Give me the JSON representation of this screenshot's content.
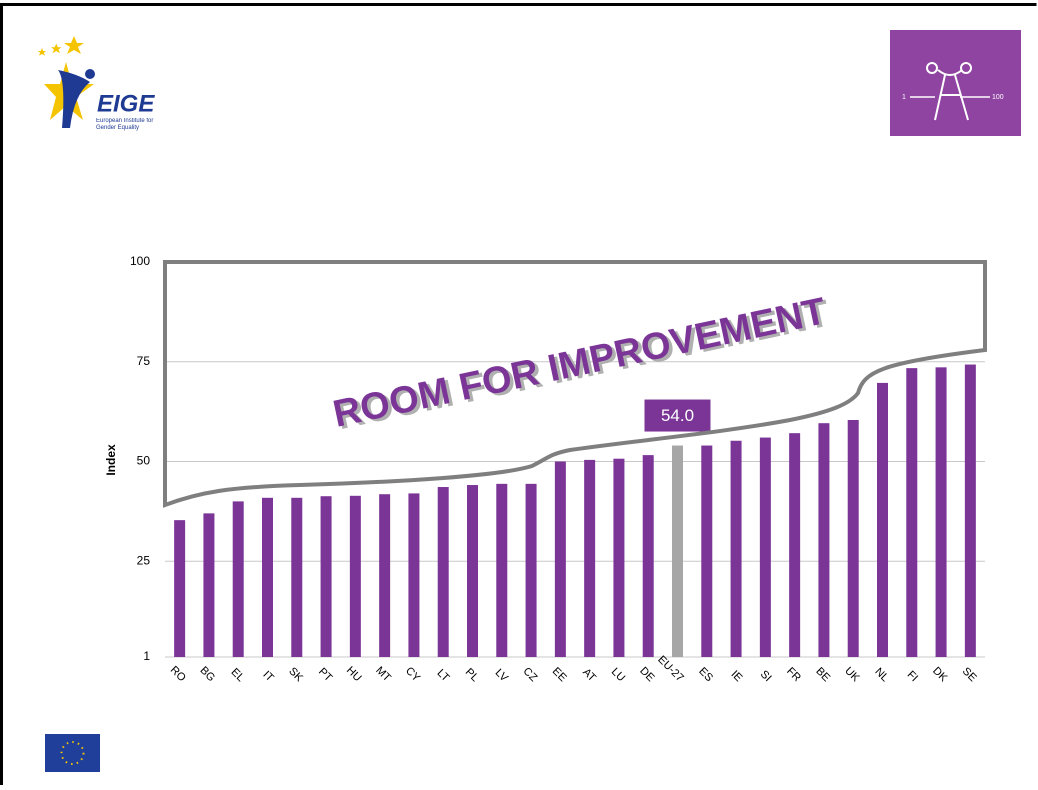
{
  "logos": {
    "left_name": "EIGE",
    "left_caption": "European Institute for Gender Equality",
    "right_min": "1",
    "right_max": "100"
  },
  "chart_data": {
    "type": "bar",
    "annotation": "ROOM FOR IMPROVEMENT",
    "y_label": "Index",
    "categories": [
      "RO",
      "BG",
      "EL",
      "IT",
      "SK",
      "PT",
      "HU",
      "MT",
      "CY",
      "LT",
      "PL",
      "LV",
      "CZ",
      "EE",
      "AT",
      "LU",
      "DE",
      "EU-27",
      "ES",
      "IE",
      "SI",
      "FR",
      "BE",
      "UK",
      "NL",
      "FI",
      "DK",
      "SE"
    ],
    "values": [
      35.3,
      37.0,
      40.0,
      40.9,
      40.9,
      41.3,
      41.4,
      41.8,
      42.0,
      43.6,
      44.1,
      44.4,
      44.4,
      50.0,
      50.4,
      50.7,
      51.6,
      54.0,
      54.0,
      55.2,
      56.0,
      57.1,
      59.6,
      60.4,
      69.7,
      73.4,
      73.6,
      74.3
    ],
    "value_labels": [
      null,
      null,
      null,
      null,
      null,
      null,
      null,
      null,
      null,
      null,
      null,
      null,
      null,
      null,
      null,
      null,
      null,
      "54.0",
      null,
      null,
      null,
      null,
      null,
      null,
      null,
      null,
      null,
      null
    ],
    "colors": [
      "#7b3597",
      "#7b3597",
      "#7b3597",
      "#7b3597",
      "#7b3597",
      "#7b3597",
      "#7b3597",
      "#7b3597",
      "#7b3597",
      "#7b3597",
      "#7b3597",
      "#7b3597",
      "#7b3597",
      "#7b3597",
      "#7b3597",
      "#7b3597",
      "#7b3597",
      "#a6a6a6",
      "#7b3597",
      "#7b3597",
      "#7b3597",
      "#7b3597",
      "#7b3597",
      "#7b3597",
      "#7b3597",
      "#7b3597",
      "#7b3597",
      "#7b3597"
    ],
    "ylim": [
      1,
      100
    ],
    "yticks": [
      1,
      25,
      50,
      75,
      100
    ],
    "grid": true
  }
}
